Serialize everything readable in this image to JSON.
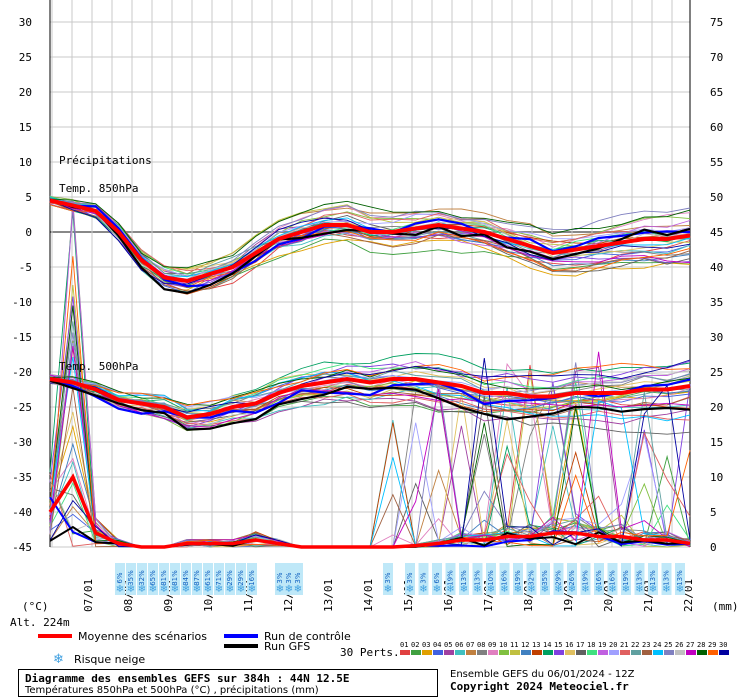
{
  "chart_data": {
    "type": "line",
    "title": "Diagramme des ensembles GEFS sur 384h : 44N 12.5E",
    "subtitle": "Températures 850hPa et 500hPa (°C) , précipitations (mm)",
    "left_axis": {
      "unit": "(°C)",
      "range": [
        -45,
        30
      ],
      "ticks": [
        30,
        25,
        20,
        15,
        10,
        5,
        0,
        -5,
        -10,
        -15,
        -20,
        -25,
        -30,
        -35,
        -40,
        -45
      ]
    },
    "right_axis": {
      "unit": "(mm)",
      "range": [
        0,
        75
      ],
      "ticks": [
        75,
        70,
        65,
        60,
        55,
        50,
        45,
        40,
        35,
        30,
        25,
        20,
        15,
        10,
        5,
        0
      ]
    },
    "x_dates": [
      "07/01",
      "08/01",
      "09/01",
      "10/01",
      "11/01",
      "12/01",
      "13/01",
      "14/01",
      "15/01",
      "16/01",
      "17/01",
      "18/01",
      "19/01",
      "20/01",
      "21/01",
      "22/01"
    ],
    "annotations": {
      "precip": "Précipitations",
      "t850": "Temp. 850hPa",
      "t500": "Temp. 500hPa"
    },
    "altitude": "Alt. 224m",
    "series": [
      {
        "name": "Moyenne des scénarios",
        "color": "#ff0000"
      },
      {
        "name": "Run de contrôle",
        "color": "#0000ff"
      },
      {
        "name": "Run GFS",
        "color": "#000000"
      }
    ],
    "t850_mean": [
      4.5,
      3.8,
      3.0,
      0,
      -4,
      -6.5,
      -7,
      -6,
      -5,
      -3,
      -1,
      0,
      1,
      1,
      0,
      0,
      0.5,
      1,
      0.5,
      0,
      -1,
      -2,
      -3,
      -2.5,
      -2,
      -1.5,
      -1,
      -1,
      -0.5
    ],
    "t500_mean": [
      -21,
      -21.5,
      -22.5,
      -24,
      -24.5,
      -25,
      -26.5,
      -26,
      -25,
      -24.5,
      -23,
      -22,
      -21.5,
      -21,
      -21.5,
      -21,
      -21,
      -21.5,
      -22,
      -23,
      -23,
      -23.5,
      -23.5,
      -23,
      -23,
      -23,
      -22.5,
      -22.5,
      -22
    ],
    "precip_mean": [
      5,
      10,
      2,
      0.5,
      0,
      0,
      0.5,
      0.5,
      0.5,
      1,
      0.5,
      0,
      0,
      0,
      0,
      0,
      0.2,
      0.5,
      1,
      1,
      1.5,
      1.5,
      2,
      2,
      1.5,
      1.5,
      1,
      1,
      0.5
    ],
    "snow_risk": {
      "label": "Risque neige",
      "values": [
        "6%",
        "35%",
        "32%",
        "65%",
        "81%",
        "81%",
        "84%",
        "87%",
        "61%",
        "71%",
        "29%",
        "29%",
        "16%",
        "3%",
        "3%",
        "3%",
        "3%",
        "3%",
        "3%",
        "6%",
        "19%",
        "13%",
        "13%",
        "10%",
        "16%",
        "19%",
        "32%",
        "35%",
        "29%",
        "26%",
        "19%",
        "16%",
        "16%",
        "19%",
        "13%",
        "13%",
        "13%",
        "13%"
      ]
    },
    "perturbations": {
      "label": "30 Perts.",
      "ids": [
        "01",
        "02",
        "03",
        "04",
        "05",
        "06",
        "07",
        "08",
        "09",
        "10",
        "11",
        "12",
        "13",
        "14",
        "15",
        "16",
        "17",
        "18",
        "19",
        "20",
        "21",
        "22",
        "23",
        "24",
        "25",
        "26",
        "27",
        "28",
        "29",
        "30"
      ],
      "colors": [
        "#e04040",
        "#40a040",
        "#e0a000",
        "#4060e0",
        "#a040a0",
        "#40c0c0",
        "#c08040",
        "#808080",
        "#e080c0",
        "#80c040",
        "#c0c040",
        "#4080c0",
        "#c04000",
        "#00a060",
        "#8040e0",
        "#e0c060",
        "#606060",
        "#40e080",
        "#c060e0",
        "#a0a0ff",
        "#e06060",
        "#60a0a0",
        "#a06040",
        "#00c0ff",
        "#8080c0",
        "#c0c0c0",
        "#c000c0",
        "#006000",
        "#ff6000",
        "#0000a0"
      ]
    }
  },
  "legend": {
    "mean_label": "Moyenne des scénarios",
    "control_label": "Run de contrôle",
    "gfs_label": "Run GFS",
    "snow_label": "Risque neige"
  },
  "info": {
    "title": "Diagramme des ensembles GEFS sur 384h : 44N 12.5E",
    "subtitle": "Températures 850hPa et 500hPa (°C) , précipitations (mm)"
  },
  "credit": {
    "run": "Ensemble GEFS du 06/01/2024 - 12Z",
    "copyright": "Copyright 2024 Meteociel.fr"
  }
}
